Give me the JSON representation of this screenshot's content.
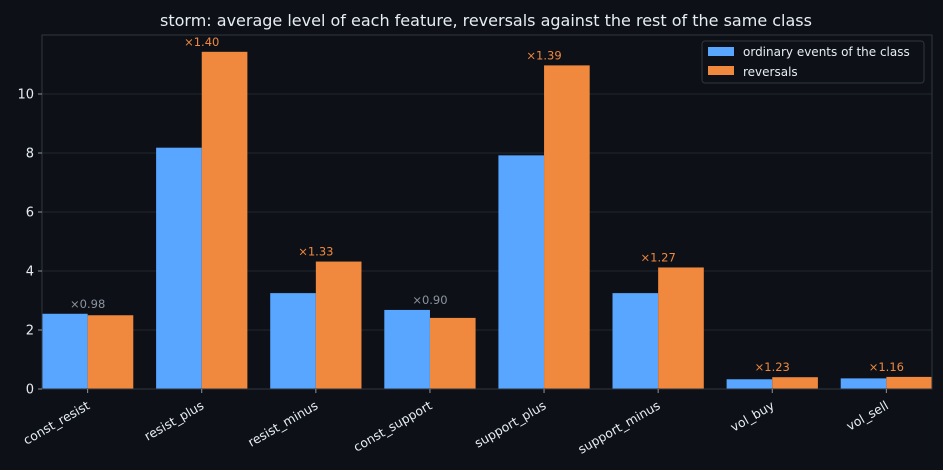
{
  "chart_data": {
    "type": "bar",
    "title": "storm: average level of each feature, reversals against the rest of the same class",
    "xlabel": "",
    "ylabel": "",
    "categories": [
      "const_resist",
      "resist_plus",
      "resist_minus",
      "const_support",
      "support_plus",
      "support_minus",
      "vol_buy",
      "vol_sell"
    ],
    "series": [
      {
        "name": "ordinary events of the class",
        "values": [
          2.55,
          8.18,
          3.25,
          2.68,
          7.92,
          3.25,
          0.33,
          0.36
        ],
        "color": "#58a6ff"
      },
      {
        "name": "reversals",
        "values": [
          2.5,
          11.43,
          4.32,
          2.41,
          10.97,
          4.12,
          0.4,
          0.41
        ],
        "color": "#f0883e"
      }
    ],
    "annotations": [
      "×0.98",
      "×1.40",
      "×1.33",
      "×0.90",
      "×1.39",
      "×1.27",
      "×1.23",
      "×1.16"
    ],
    "annotation_colors": [
      "#8b949e",
      "#f0883e",
      "#f0883e",
      "#8b949e",
      "#f0883e",
      "#f0883e",
      "#f0883e",
      "#f0883e"
    ],
    "ylim": [
      0,
      12
    ],
    "yticks": [
      "0",
      "2",
      "4",
      "6",
      "8",
      "10"
    ],
    "grid": true,
    "legend": "top-right",
    "colors": {
      "background": "#0d1117",
      "axes_border": "#30363d",
      "grid": "#21262d",
      "text": "#e6edf3"
    }
  }
}
